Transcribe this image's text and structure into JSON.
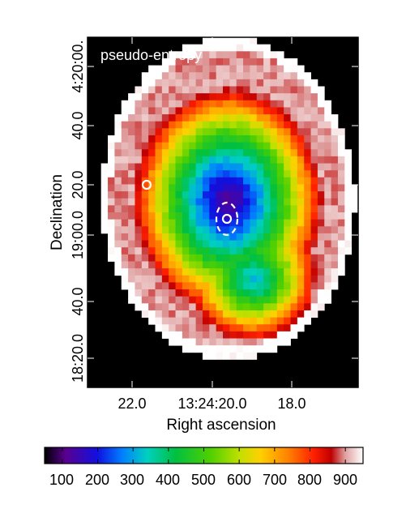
{
  "chart_data": {
    "type": "heatmap",
    "title": "pseudo-entropy",
    "xlabel": "Right ascension",
    "ylabel": "Declination",
    "x_ticks": [
      "22.0",
      "13:24:20.0",
      "18.0"
    ],
    "y_ticks": [
      "18:20.0",
      "40.0",
      "19:00.0",
      "20.0",
      "40.0",
      "4:20:00."
    ],
    "colorbar_ticks": [
      "100",
      "200",
      "300",
      "400",
      "500",
      "600",
      "700",
      "800",
      "900"
    ],
    "colorbar_range": [
      50,
      950
    ],
    "colormap_stops": [
      {
        "v": 50,
        "c": "#000000"
      },
      {
        "v": 110,
        "c": "#5a0090"
      },
      {
        "v": 200,
        "c": "#1010e0"
      },
      {
        "v": 270,
        "c": "#0080ff"
      },
      {
        "v": 340,
        "c": "#00d0c0"
      },
      {
        "v": 420,
        "c": "#00c040"
      },
      {
        "v": 520,
        "c": "#50d000"
      },
      {
        "v": 600,
        "c": "#c0e000"
      },
      {
        "v": 660,
        "c": "#ffd000"
      },
      {
        "v": 740,
        "c": "#ff8000"
      },
      {
        "v": 810,
        "c": "#ff2000"
      },
      {
        "v": 860,
        "c": "#c00000"
      },
      {
        "v": 900,
        "c": "#e0a0a0"
      },
      {
        "v": 950,
        "c": "#ffffff"
      }
    ],
    "map_grid": {
      "cols": 40,
      "rows": 50
    },
    "entropy_model": {
      "minimum": 120,
      "maximum_edge": 900,
      "center_fraction": [
        0.52,
        0.46
      ],
      "ellipse_fraction": [
        0.47,
        0.46
      ],
      "rotation_deg": -15,
      "tail_fraction": [
        0.62,
        0.7
      ]
    },
    "markers": [
      {
        "type": "ellipse",
        "style": "dashed",
        "color": "#ffffff"
      },
      {
        "type": "circle",
        "color": "#ffffff"
      },
      {
        "type": "circle",
        "color": "#ffffff"
      }
    ]
  }
}
